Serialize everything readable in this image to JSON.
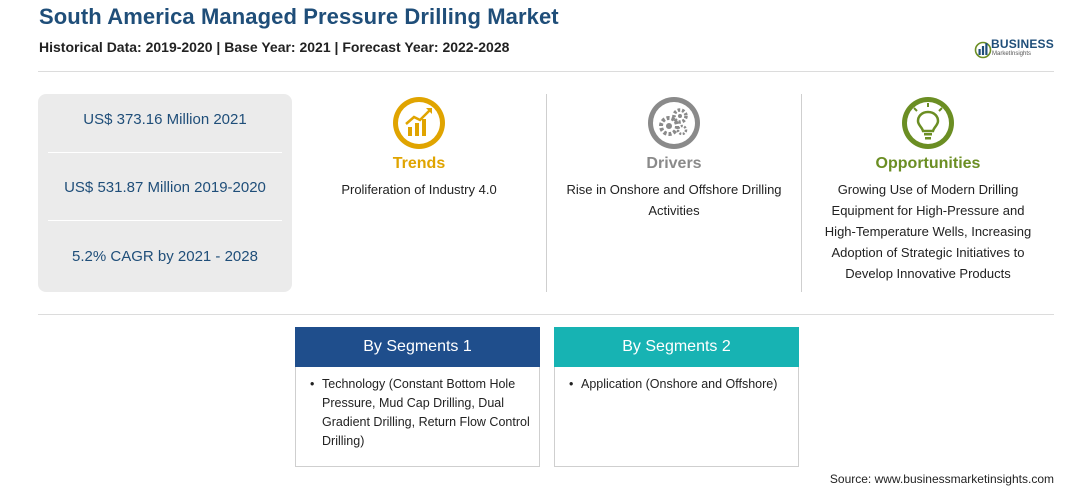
{
  "header": {
    "title": "South America Managed Pressure Drilling Market",
    "subtitle": "Historical Data: 2019-2020 | Base Year: 2021 | Forecast Year: 2022-2028"
  },
  "logo": {
    "word": "BUSINESS",
    "tagline": "MarketInsights",
    "icon": "globe-bars-logo-icon"
  },
  "stats": [
    {
      "text": "US$ 373.16 Million 2021"
    },
    {
      "text": "US$ 531.87 Million 2019-2020"
    },
    {
      "text": "5.2% CAGR by 2021 - 2028"
    }
  ],
  "columns": {
    "trends": {
      "heading": "Trends",
      "text": "Proliferation of Industry 4.0",
      "color": "#e0a400",
      "icon": "trending-chart-icon"
    },
    "drivers": {
      "heading": "Drivers",
      "text": "Rise in Onshore and Offshore Drilling Activities",
      "color": "#8a8a8a",
      "icon": "gears-icon"
    },
    "opportunities": {
      "heading": "Opportunities",
      "text": "Growing Use of Modern Drilling Equipment for High-Pressure and High-Temperature Wells, Increasing Adoption of Strategic Initiatives to Develop Innovative Products",
      "color": "#6b8e23",
      "icon": "lightbulb-icon"
    }
  },
  "segments": [
    {
      "title": "By Segments 1",
      "color": "#1f4e8c",
      "bullet": "•",
      "item": "Technology (Constant Bottom Hole Pressure, Mud Cap Drilling, Dual Gradient Drilling, Return Flow Control Drilling)"
    },
    {
      "title": "By Segments 2",
      "color": "#17b3b3",
      "bullet": "•",
      "item": "Application (Onshore and Offshore)"
    }
  ],
  "source": "Source: www.businessmarketinsights.com"
}
